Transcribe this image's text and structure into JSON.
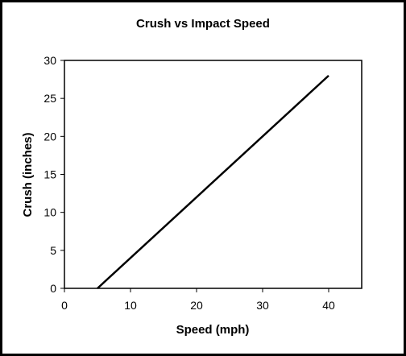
{
  "chart_data": {
    "type": "line",
    "title": "Crush vs Impact Speed",
    "xlabel": "Speed (mph)",
    "ylabel": "Crush (inches)",
    "xlim": [
      0,
      45
    ],
    "ylim": [
      0,
      30
    ],
    "xticks": [
      0,
      10,
      20,
      30,
      40
    ],
    "yticks": [
      0,
      5,
      10,
      15,
      20,
      25,
      30
    ],
    "grid": false,
    "legend": "none",
    "series": [
      {
        "x": [
          5,
          40
        ],
        "y": [
          0,
          28
        ],
        "color": "#000000"
      }
    ]
  }
}
